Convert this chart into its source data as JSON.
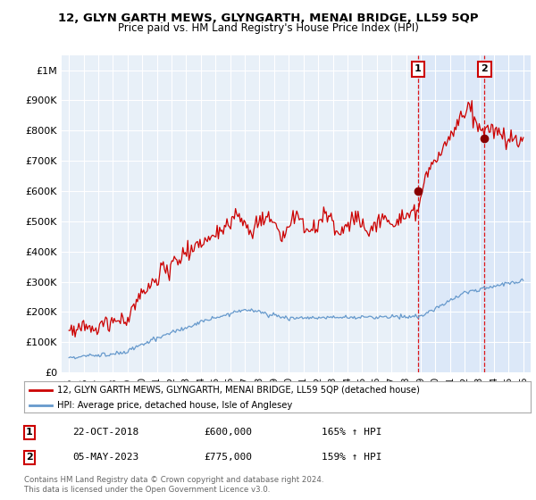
{
  "title1": "12, GLYN GARTH MEWS, GLYNGARTH, MENAI BRIDGE, LL59 5QP",
  "title2": "Price paid vs. HM Land Registry's House Price Index (HPI)",
  "ylabel_ticks": [
    "£0",
    "£100K",
    "£200K",
    "£300K",
    "£400K",
    "£500K",
    "£600K",
    "£700K",
    "£800K",
    "£900K",
    "£1M"
  ],
  "ytick_vals": [
    0,
    100000,
    200000,
    300000,
    400000,
    500000,
    600000,
    700000,
    800000,
    900000,
    1000000
  ],
  "ylim": [
    0,
    1050000
  ],
  "xlim_start": 1994.5,
  "xlim_end": 2026.5,
  "legend_line1": "12, GLYN GARTH MEWS, GLYNGARTH, MENAI BRIDGE, LL59 5QP (detached house)",
  "legend_line2": "HPI: Average price, detached house, Isle of Anglesey",
  "line1_color": "#cc0000",
  "line2_color": "#6699cc",
  "vline_color": "#dd0000",
  "shade_color": "#dce8f5",
  "marker1_x": 2018.81,
  "marker1_y": 600000,
  "marker1_label": "1",
  "marker2_x": 2023.35,
  "marker2_y": 775000,
  "marker2_label": "2",
  "table_rows": [
    [
      "1",
      "22-OCT-2018",
      "£600,000",
      "165% ↑ HPI"
    ],
    [
      "2",
      "05-MAY-2023",
      "£775,000",
      "159% ↑ HPI"
    ]
  ],
  "footer": "Contains HM Land Registry data © Crown copyright and database right 2024.\nThis data is licensed under the Open Government Licence v3.0.",
  "background_color": "#ffffff",
  "plot_bg_color": "#e8f0f8",
  "grid_color": "#ffffff"
}
